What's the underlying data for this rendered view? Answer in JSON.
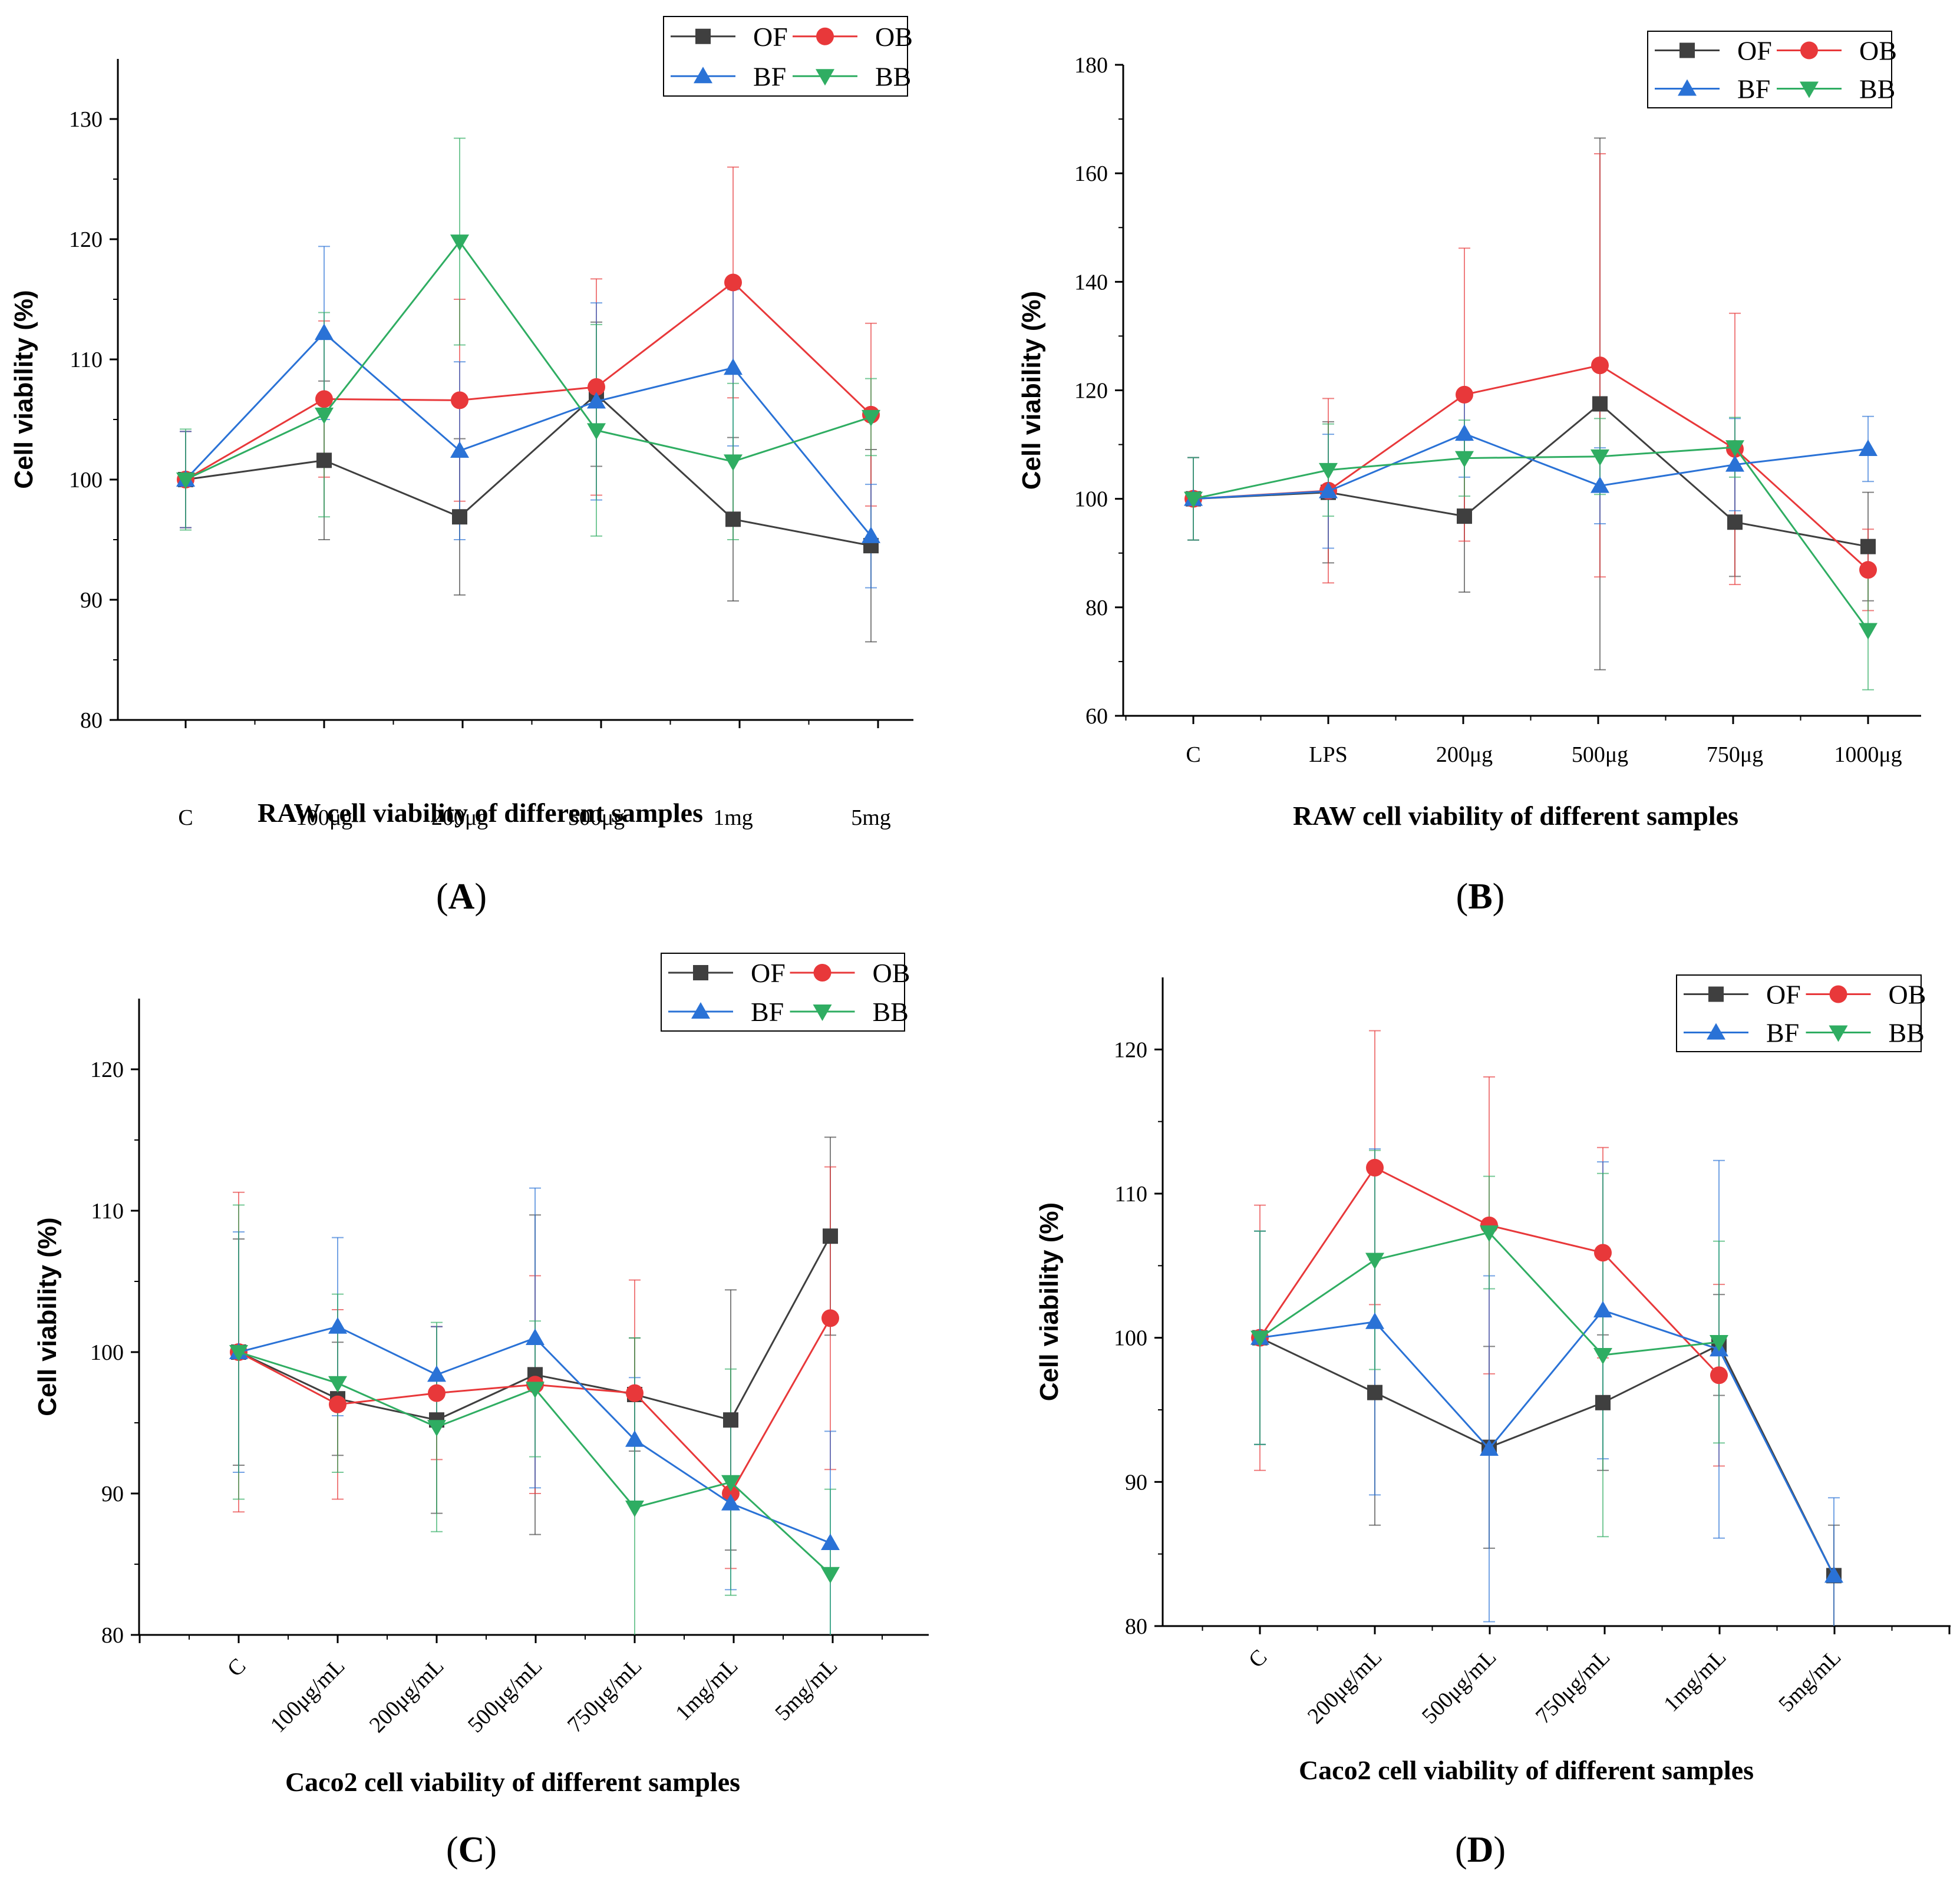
{
  "colors": {
    "OF": "#3f3f3f",
    "OB": "#e8383a",
    "BF": "#2a72d6",
    "BB": "#2fad62"
  },
  "chart_data": [
    {
      "panel": "(A)",
      "type": "line",
      "xlabel": "RAW cell viability of different samples",
      "ylabel": "Cell viability (%)",
      "ylim": [
        80,
        135
      ],
      "yticks": [
        80,
        90,
        100,
        110,
        120,
        130
      ],
      "categories": [
        "C",
        "100μg",
        "200μg",
        "500μg",
        "1mg",
        "5mg"
      ],
      "legend": [
        "OF",
        "OB",
        "BF",
        "BB"
      ],
      "series": [
        {
          "name": "OF",
          "values": [
            100,
            101.6,
            96.9,
            107.1,
            96.7,
            94.5
          ],
          "errors": [
            4,
            6.6,
            6.5,
            6,
            6.8,
            8
          ]
        },
        {
          "name": "OB",
          "values": [
            100,
            106.7,
            106.6,
            107.7,
            116.4,
            105.4
          ],
          "errors": [
            4,
            6.5,
            8.4,
            9,
            9.6,
            7.6
          ]
        },
        {
          "name": "BF",
          "values": [
            100,
            112.2,
            102.4,
            106.5,
            109.3,
            95.3
          ],
          "errors": [
            4,
            7.2,
            7.4,
            8.2,
            6.5,
            4.3
          ]
        },
        {
          "name": "BB",
          "values": [
            100,
            105.4,
            119.8,
            104.1,
            101.5,
            105.2
          ],
          "errors": [
            4.2,
            8.5,
            8.6,
            8.8,
            6.5,
            3.2
          ]
        }
      ]
    },
    {
      "panel": "(B)",
      "type": "line",
      "xlabel": "RAW cell viability of different samples",
      "ylabel": "Cell viability (%)",
      "ylim": [
        60,
        180
      ],
      "yticks": [
        60,
        80,
        100,
        120,
        140,
        160,
        180
      ],
      "categories": [
        "C",
        "LPS",
        "200μg",
        "500μg",
        "750μg",
        "1000μg"
      ],
      "legend": [
        "OF",
        "OB",
        "BF",
        "BB"
      ],
      "series": [
        {
          "name": "OF",
          "values": [
            100,
            101.2,
            96.8,
            117.5,
            95.7,
            91.2
          ],
          "errors": [
            7.6,
            13,
            14,
            49,
            10,
            10
          ]
        },
        {
          "name": "OB",
          "values": [
            100,
            101.5,
            119.2,
            124.6,
            109.2,
            86.9
          ],
          "errors": [
            7.6,
            17,
            27,
            39,
            25,
            7.5
          ]
        },
        {
          "name": "BF",
          "values": [
            100,
            101.4,
            112,
            102.4,
            106.3,
            109.2
          ],
          "errors": [
            7.6,
            10.5,
            8,
            7,
            8.5,
            6
          ]
        },
        {
          "name": "BB",
          "values": [
            100,
            105.3,
            107.5,
            107.8,
            109.5,
            75.8
          ],
          "errors": [
            7.6,
            8.5,
            7,
            7,
            5.5,
            11
          ]
        }
      ]
    },
    {
      "panel": "(C)",
      "type": "line",
      "xlabel": "Caco2 cell viability of different samples",
      "ylabel": "Cell viability (%)",
      "ylim": [
        80,
        125
      ],
      "yticks": [
        80,
        90,
        100,
        110,
        120
      ],
      "categories": [
        "C",
        "100μg/mL",
        "200μg/mL",
        "500μg/mL",
        "750μg/mL",
        "1mg/mL",
        "5mg/mL"
      ],
      "legend": [
        "OF",
        "OB",
        "BF",
        "BB"
      ],
      "series": [
        {
          "name": "OF",
          "values": [
            100,
            96.7,
            95.2,
            98.4,
            97,
            95.2,
            108.2
          ],
          "errors": [
            8,
            4,
            6.6,
            11.3,
            4,
            9.2,
            7
          ]
        },
        {
          "name": "OB",
          "values": [
            100,
            96.3,
            97.1,
            97.7,
            97.1,
            90,
            102.4
          ],
          "errors": [
            11.3,
            6.7,
            4.7,
            7.7,
            8,
            5.3,
            10.7
          ]
        },
        {
          "name": "BF",
          "values": [
            100,
            101.8,
            98.4,
            101,
            93.8,
            89.3,
            86.5
          ],
          "errors": [
            8.5,
            6.3,
            3.4,
            10.6,
            4.4,
            6.1,
            7.9
          ]
        },
        {
          "name": "BB",
          "values": [
            100,
            97.8,
            94.7,
            97.4,
            89,
            90.8,
            84.3
          ],
          "errors": [
            10.4,
            6.3,
            7.4,
            4.8,
            12,
            8,
            6
          ]
        }
      ]
    },
    {
      "panel": "(D)",
      "type": "line",
      "xlabel": "Caco2 cell viability of different samples",
      "ylabel": "Cell viability (%)",
      "ylim": [
        80,
        125
      ],
      "yticks": [
        80,
        90,
        100,
        110,
        120
      ],
      "categories": [
        "C",
        "200μg/mL",
        "500μg/mL",
        "750μg/mL",
        "1mg/mL",
        "5mg/mL"
      ],
      "legend": [
        "OF",
        "OB",
        "BF",
        "BB"
      ],
      "series": [
        {
          "name": "OF",
          "values": [
            100,
            96.2,
            92.4,
            95.5,
            99.5,
            83.5
          ],
          "errors": [
            7.4,
            9.2,
            7,
            4.7,
            3.5,
            3.5
          ]
        },
        {
          "name": "OB",
          "values": [
            100,
            111.8,
            107.8,
            105.9,
            97.4,
            null
          ],
          "errors": [
            9.2,
            9.5,
            10.3,
            7.3,
            6.3,
            0
          ]
        },
        {
          "name": "BF",
          "values": [
            100,
            101.1,
            92.3,
            101.9,
            99.2,
            83.5
          ],
          "errors": [
            7.4,
            12,
            12,
            10.3,
            13.1,
            5.4
          ]
        },
        {
          "name": "BB",
          "values": [
            100,
            105.4,
            107.3,
            98.8,
            99.7,
            null
          ],
          "errors": [
            7.4,
            7.6,
            3.9,
            12.6,
            7,
            0
          ]
        }
      ]
    }
  ]
}
